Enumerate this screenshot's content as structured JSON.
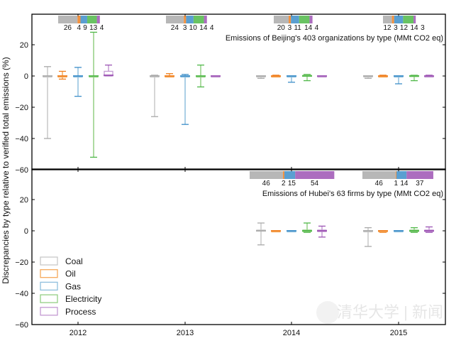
{
  "chart_data": [
    {
      "type": "box",
      "panel": "Beijing",
      "title": "Emissions of Beijing's 403 organizations by type (MMt CO2 eq)",
      "ylabel": "Discrepancies by type relative to verified total emissions (%)",
      "ylim": [
        -60,
        30
      ],
      "yticks": [
        20,
        0,
        -20,
        -40,
        -60
      ],
      "categories": [
        "2012",
        "2013",
        "2014",
        "2015"
      ],
      "series": [
        {
          "name": "Coal",
          "color": "#aaaaaa",
          "boxes": [
            {
              "low": -40,
              "q1": 0,
              "median": 0,
              "q3": 0,
              "high": 6
            },
            {
              "low": -26,
              "q1": 0,
              "median": 0,
              "q3": 0,
              "high": 0.5
            },
            {
              "low": -1.5,
              "q1": 0,
              "median": 0,
              "q3": 0,
              "high": 0
            },
            {
              "low": -1.5,
              "q1": 0,
              "median": 0,
              "q3": 0,
              "high": 0
            }
          ]
        },
        {
          "name": "Oil",
          "color": "#f07f1e",
          "boxes": [
            {
              "low": -2,
              "q1": 0,
              "median": 0,
              "q3": 0,
              "high": 3
            },
            {
              "low": -0.5,
              "q1": 0,
              "median": 0,
              "q3": 0,
              "high": 1.5
            },
            {
              "low": 0,
              "q1": 0,
              "median": 0,
              "q3": 0,
              "high": 0.5
            },
            {
              "low": 0,
              "q1": 0,
              "median": 0,
              "q3": 0,
              "high": 0.5
            }
          ]
        },
        {
          "name": "Gas",
          "color": "#3d8ec9",
          "boxes": [
            {
              "low": -13,
              "q1": 0,
              "median": 0,
              "q3": 0,
              "high": 5.5
            },
            {
              "low": -31,
              "q1": 0,
              "median": 0,
              "q3": 0,
              "high": 1
            },
            {
              "low": -4,
              "q1": 0,
              "median": 0,
              "q3": 0,
              "high": 0
            },
            {
              "low": -5,
              "q1": 0,
              "median": 0,
              "q3": 0,
              "high": 0
            }
          ]
        },
        {
          "name": "Electricity",
          "color": "#4fb848",
          "boxes": [
            {
              "low": -52,
              "q1": 0,
              "median": 0,
              "q3": 0,
              "high": 28
            },
            {
              "low": -7,
              "q1": 0,
              "median": 0,
              "q3": 0,
              "high": 7
            },
            {
              "low": -3,
              "q1": 0,
              "median": 0,
              "q3": 0.5,
              "high": 1
            },
            {
              "low": -3,
              "q1": 0,
              "median": 0,
              "q3": 0.3,
              "high": 0.5
            }
          ]
        },
        {
          "name": "Process",
          "color": "#9d54b4",
          "boxes": [
            {
              "low": 0,
              "q1": 0,
              "median": 0.5,
              "q3": 3,
              "high": 7
            },
            {
              "low": 0,
              "q1": 0,
              "median": 0,
              "q3": 0,
              "high": 0
            },
            {
              "low": 0,
              "q1": 0,
              "median": 0,
              "q3": 0,
              "high": 0
            },
            {
              "low": 0,
              "q1": 0,
              "median": 0,
              "q3": 0,
              "high": 0.5
            }
          ]
        }
      ],
      "emissions_bars": [
        {
          "year": "2012",
          "values": [
            26,
            4,
            9,
            13,
            4
          ],
          "labels": [
            "26",
            "4",
            "9",
            "13",
            "4"
          ]
        },
        {
          "year": "2013",
          "values": [
            24,
            3,
            10,
            14,
            4
          ],
          "labels": [
            "24",
            "3",
            "10",
            "14",
            "4"
          ]
        },
        {
          "year": "2014",
          "values": [
            20,
            3,
            11,
            14,
            4
          ],
          "labels": [
            "20",
            "3",
            "11",
            "14",
            "4"
          ]
        },
        {
          "year": "2015",
          "values": [
            12,
            3,
            12,
            14,
            3
          ],
          "labels": [
            "12",
            "3",
            "12",
            "14",
            "3"
          ]
        }
      ]
    },
    {
      "type": "box",
      "panel": "Hubei",
      "title": "Emissions of Hubei's 63 firms by type (MMt CO2 eq)",
      "ylim": [
        -60,
        30
      ],
      "yticks": [
        20,
        0,
        -20,
        -40,
        -60
      ],
      "categories": [
        "2012",
        "2013",
        "2014",
        "2015"
      ],
      "series": [
        {
          "name": "Coal",
          "boxes": [
            null,
            null,
            {
              "low": -9,
              "q1": 0,
              "median": 0,
              "q3": 0.5,
              "high": 5
            },
            {
              "low": -10,
              "q1": 0,
              "median": 0,
              "q3": 0,
              "high": 2
            }
          ]
        },
        {
          "name": "Oil",
          "boxes": [
            null,
            null,
            {
              "low": 0,
              "q1": 0,
              "median": 0,
              "q3": 0,
              "high": 0
            },
            {
              "low": -1,
              "q1": -0.5,
              "median": 0,
              "q3": 0,
              "high": 0
            }
          ]
        },
        {
          "name": "Gas",
          "boxes": [
            null,
            null,
            {
              "low": 0,
              "q1": 0,
              "median": 0,
              "q3": 0,
              "high": 0
            },
            {
              "low": 0,
              "q1": 0,
              "median": 0,
              "q3": 0,
              "high": 0
            }
          ]
        },
        {
          "name": "Electricity",
          "boxes": [
            null,
            null,
            {
              "low": -1,
              "q1": -0.5,
              "median": 0,
              "q3": 0.5,
              "high": 5
            },
            {
              "low": -1,
              "q1": -0.5,
              "median": 0,
              "q3": 0.5,
              "high": 2
            }
          ]
        },
        {
          "name": "Process",
          "boxes": [
            null,
            null,
            {
              "low": -4,
              "q1": -0.5,
              "median": 0,
              "q3": 0.5,
              "high": 3
            },
            {
              "low": -1,
              "q1": -0.5,
              "median": 0,
              "q3": 0.5,
              "high": 2.5
            }
          ]
        }
      ],
      "emissions_bars": [
        {
          "year": "2014",
          "values": [
            46,
            2,
            15,
            0,
            54
          ],
          "labels": [
            "46",
            "2",
            "15",
            "",
            "54"
          ]
        },
        {
          "year": "2015",
          "values": [
            46,
            1,
            14,
            0,
            37
          ],
          "labels": [
            "46",
            "1",
            "14",
            "",
            "37"
          ]
        }
      ]
    }
  ],
  "legend": {
    "placement": "lower-left",
    "items": [
      "Coal",
      "Oil",
      "Gas",
      "Electricity",
      "Process"
    ]
  },
  "bar_colors": [
    "#aaaaaa",
    "#f07f1e",
    "#3d8ec9",
    "#4fb848",
    "#9d54b4"
  ],
  "box_colors": [
    "#c8c8c8",
    "#f5a95a",
    "#8fbfdd",
    "#93cf84",
    "#c49ad2"
  ],
  "watermark": "清华大学 | 新闻"
}
